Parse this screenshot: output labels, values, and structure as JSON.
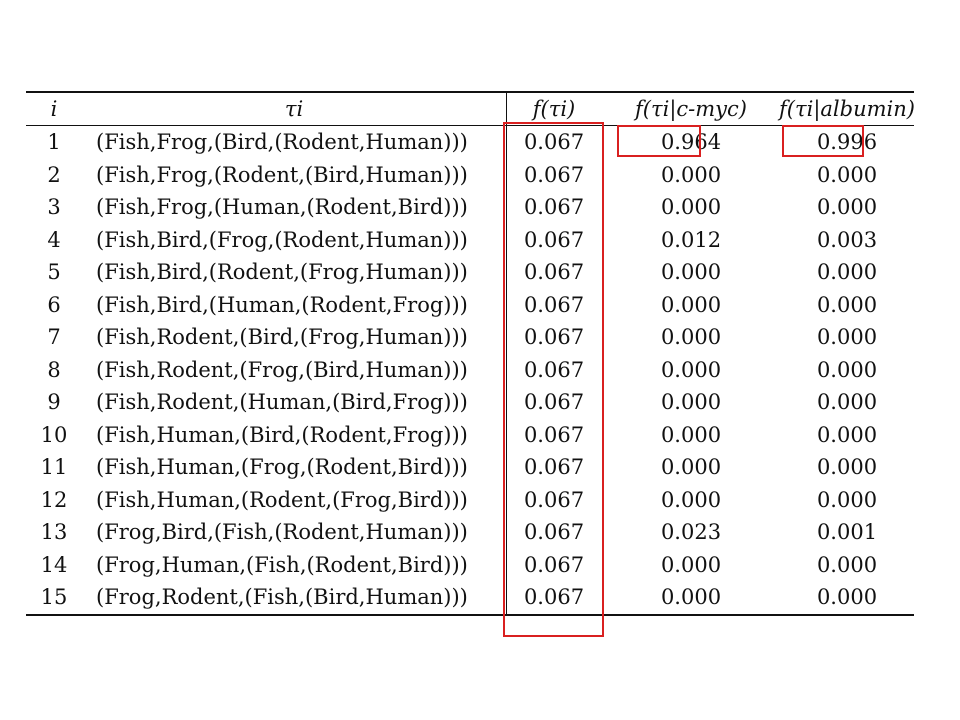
{
  "table": {
    "headers": {
      "i": "i",
      "tau": "τi",
      "f": "f(τi)",
      "f_cmyc": "f(τi|c-myc)",
      "f_albumin": "f(τi|albumin)"
    },
    "rows": [
      {
        "i": "1",
        "tau": "(Fish,Frog,(Bird,(Rodent,Human)))",
        "f": "0.067",
        "cmyc": "0.964",
        "alb": "0.996"
      },
      {
        "i": "2",
        "tau": "(Fish,Frog,(Rodent,(Bird,Human)))",
        "f": "0.067",
        "cmyc": "0.000",
        "alb": "0.000"
      },
      {
        "i": "3",
        "tau": "(Fish,Frog,(Human,(Rodent,Bird)))",
        "f": "0.067",
        "cmyc": "0.000",
        "alb": "0.000"
      },
      {
        "i": "4",
        "tau": "(Fish,Bird,(Frog,(Rodent,Human)))",
        "f": "0.067",
        "cmyc": "0.012",
        "alb": "0.003"
      },
      {
        "i": "5",
        "tau": "(Fish,Bird,(Rodent,(Frog,Human)))",
        "f": "0.067",
        "cmyc": "0.000",
        "alb": "0.000"
      },
      {
        "i": "6",
        "tau": "(Fish,Bird,(Human,(Rodent,Frog)))",
        "f": "0.067",
        "cmyc": "0.000",
        "alb": "0.000"
      },
      {
        "i": "7",
        "tau": "(Fish,Rodent,(Bird,(Frog,Human)))",
        "f": "0.067",
        "cmyc": "0.000",
        "alb": "0.000"
      },
      {
        "i": "8",
        "tau": "(Fish,Rodent,(Frog,(Bird,Human)))",
        "f": "0.067",
        "cmyc": "0.000",
        "alb": "0.000"
      },
      {
        "i": "9",
        "tau": "(Fish,Rodent,(Human,(Bird,Frog)))",
        "f": "0.067",
        "cmyc": "0.000",
        "alb": "0.000"
      },
      {
        "i": "10",
        "tau": "(Fish,Human,(Bird,(Rodent,Frog)))",
        "f": "0.067",
        "cmyc": "0.000",
        "alb": "0.000"
      },
      {
        "i": "11",
        "tau": "(Fish,Human,(Frog,(Rodent,Bird)))",
        "f": "0.067",
        "cmyc": "0.000",
        "alb": "0.000"
      },
      {
        "i": "12",
        "tau": "(Fish,Human,(Rodent,(Frog,Bird)))",
        "f": "0.067",
        "cmyc": "0.000",
        "alb": "0.000"
      },
      {
        "i": "13",
        "tau": "(Frog,Bird,(Fish,(Rodent,Human)))",
        "f": "0.067",
        "cmyc": "0.023",
        "alb": "0.001"
      },
      {
        "i": "14",
        "tau": "(Frog,Human,(Fish,(Rodent,Bird)))",
        "f": "0.067",
        "cmyc": "0.000",
        "alb": "0.000"
      },
      {
        "i": "15",
        "tau": "(Frog,Rodent,(Fish,(Bird,Human)))",
        "f": "0.067",
        "cmyc": "0.000",
        "alb": "0.000"
      }
    ]
  },
  "highlight_color": "#d92020"
}
